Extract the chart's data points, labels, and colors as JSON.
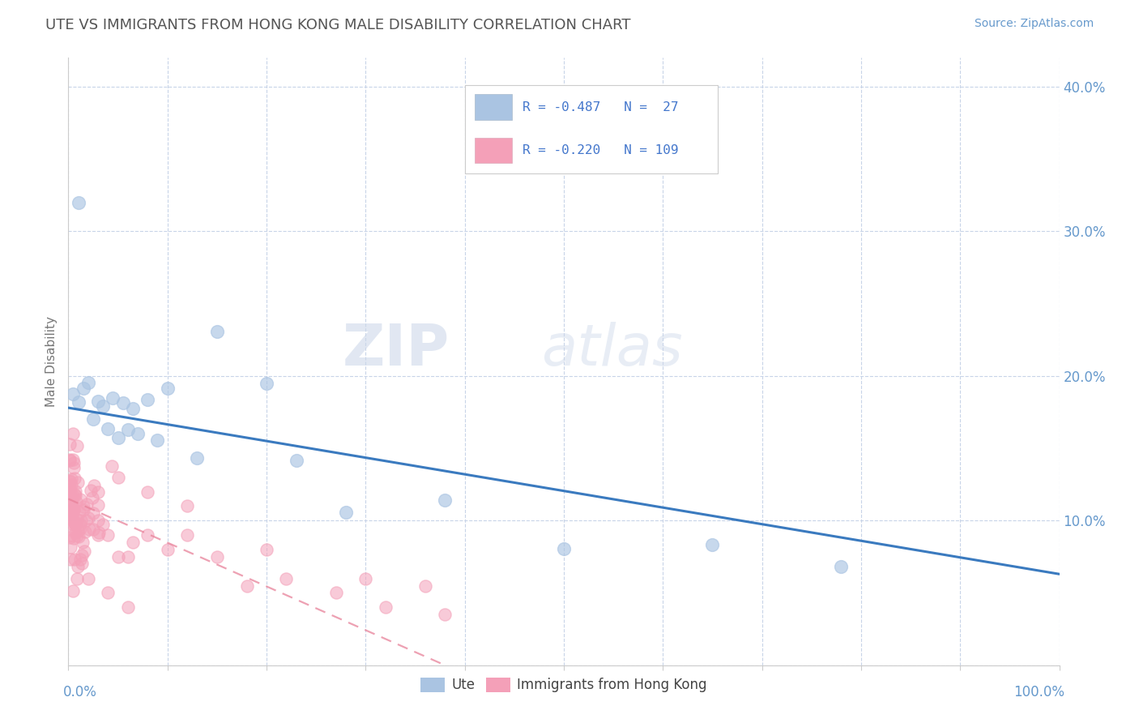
{
  "title": "UTE VS IMMIGRANTS FROM HONG KONG MALE DISABILITY CORRELATION CHART",
  "source": "Source: ZipAtlas.com",
  "ylabel": "Male Disability",
  "watermark_zip": "ZIP",
  "watermark_atlas": "atlas",
  "ute_color": "#aac4e2",
  "hk_color": "#f4a0b8",
  "line_ute_color": "#3a7abf",
  "line_hk_color": "#e8829a",
  "background_color": "#ffffff",
  "grid_color": "#c8d4e8",
  "title_color": "#555555",
  "axis_color": "#6699cc",
  "right_label_color": "#6699cc",
  "legend_text_color": "#4477cc",
  "xlim": [
    0.0,
    1.0
  ],
  "ylim": [
    0.0,
    0.42
  ],
  "ytick_positions": [
    0.0,
    0.1,
    0.2,
    0.3,
    0.4
  ],
  "ytick_labels": [
    "",
    "10.0%",
    "20.0%",
    "30.0%",
    "40.0%"
  ],
  "xtick_positions": [
    0.0,
    0.1,
    0.2,
    0.3,
    0.4,
    0.5,
    0.6,
    0.7,
    0.8,
    0.9,
    1.0
  ],
  "ute_line_x": [
    0.0,
    1.0
  ],
  "ute_line_y": [
    0.178,
    0.063
  ],
  "hk_line_x": [
    0.0,
    0.38
  ],
  "hk_line_y": [
    0.115,
    0.0
  ],
  "legend_r1_val": "-0.487",
  "legend_n1_val": "27",
  "legend_r2_val": "-0.220",
  "legend_n2_val": "109"
}
